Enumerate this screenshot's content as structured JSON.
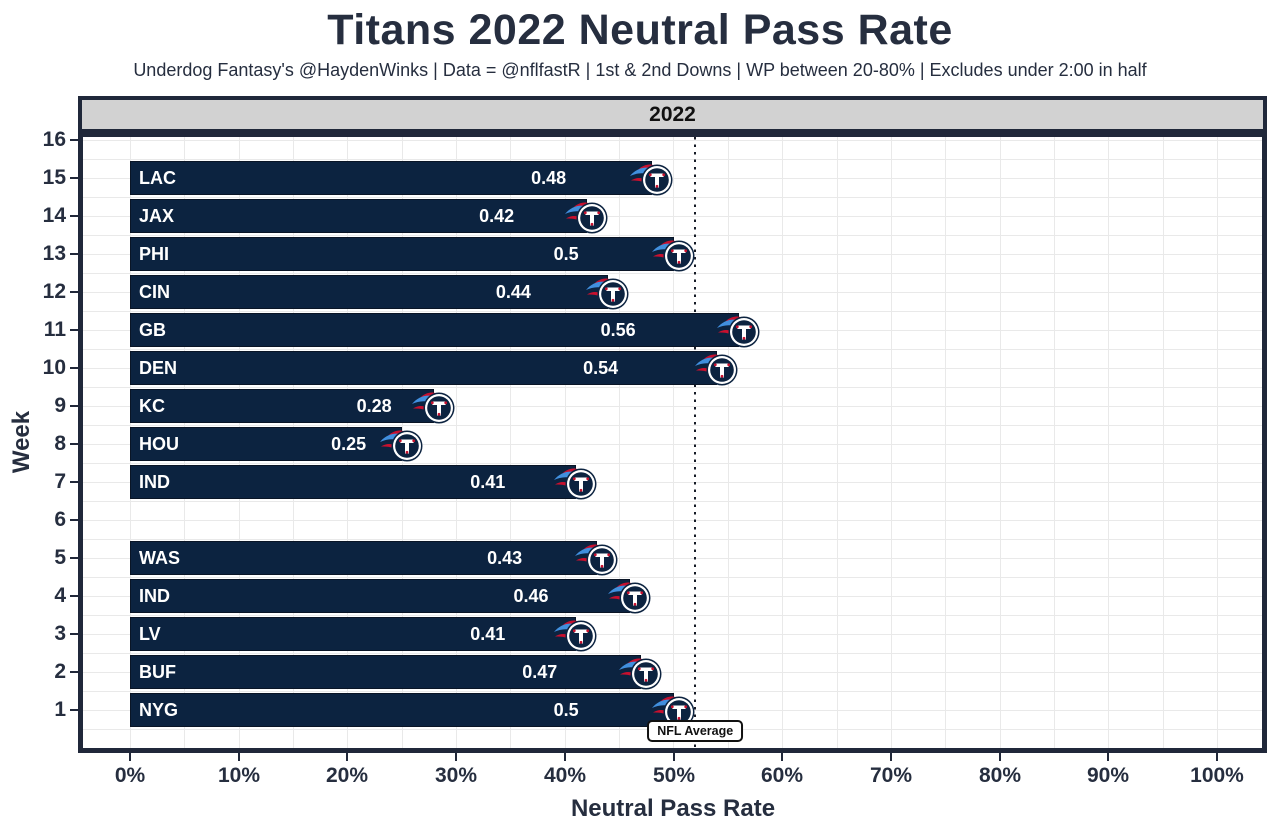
{
  "header": {
    "title": "Titans 2022 Neutral Pass Rate",
    "subtitle": "Underdog Fantasy's @HaydenWinks | Data = @nflfastR | 1st & 2nd Downs | WP between 20-80% | Excludes under 2:00 in half"
  },
  "chart_data": {
    "type": "bar",
    "orientation": "horizontal",
    "facet_label": "2022",
    "xlabel": "Neutral Pass Rate",
    "ylabel": "Week",
    "x_ticks": [
      "0%",
      "10%",
      "20%",
      "30%",
      "40%",
      "50%",
      "60%",
      "70%",
      "80%",
      "90%",
      "100%"
    ],
    "xlim": [
      0,
      1.0
    ],
    "x_gridline_step": 0.05,
    "y_weeks": [
      16,
      15,
      14,
      13,
      12,
      11,
      10,
      9,
      8,
      7,
      6,
      5,
      4,
      3,
      2,
      1
    ],
    "bars": [
      {
        "week": 15,
        "opponent": "LAC",
        "value": 0.48,
        "label": "0.48"
      },
      {
        "week": 14,
        "opponent": "JAX",
        "value": 0.42,
        "label": "0.42"
      },
      {
        "week": 13,
        "opponent": "PHI",
        "value": 0.5,
        "label": "0.5"
      },
      {
        "week": 12,
        "opponent": "CIN",
        "value": 0.44,
        "label": "0.44"
      },
      {
        "week": 11,
        "opponent": "GB",
        "value": 0.56,
        "label": "0.56"
      },
      {
        "week": 10,
        "opponent": "DEN",
        "value": 0.54,
        "label": "0.54"
      },
      {
        "week": 9,
        "opponent": "KC",
        "value": 0.28,
        "label": "0.28"
      },
      {
        "week": 8,
        "opponent": "HOU",
        "value": 0.25,
        "label": "0.25"
      },
      {
        "week": 7,
        "opponent": "IND",
        "value": 0.41,
        "label": "0.41"
      },
      {
        "week": 5,
        "opponent": "WAS",
        "value": 0.43,
        "label": "0.43"
      },
      {
        "week": 4,
        "opponent": "IND",
        "value": 0.46,
        "label": "0.46"
      },
      {
        "week": 3,
        "opponent": "LV",
        "value": 0.41,
        "label": "0.41"
      },
      {
        "week": 2,
        "opponent": "BUF",
        "value": 0.47,
        "label": "0.47"
      },
      {
        "week": 1,
        "opponent": "NYG",
        "value": 0.5,
        "label": "0.5"
      }
    ],
    "reference_line": {
      "value": 0.52,
      "label": "NFL Average",
      "style": "dotted"
    },
    "bar_icon": "titans-logo",
    "grid": true,
    "legend": "none",
    "value_label_position": 0.8,
    "colors": {
      "bar": "#0C2340",
      "bar_text": "#ffffff",
      "frame": "#20283a",
      "strip_bg": "#d2d2d2",
      "grid_line": "#e9e9e9",
      "axis_text": "#262e3f",
      "plot_bg": "#ffffff",
      "logo_red": "#C8102E",
      "logo_blue": "#418FDE"
    }
  }
}
